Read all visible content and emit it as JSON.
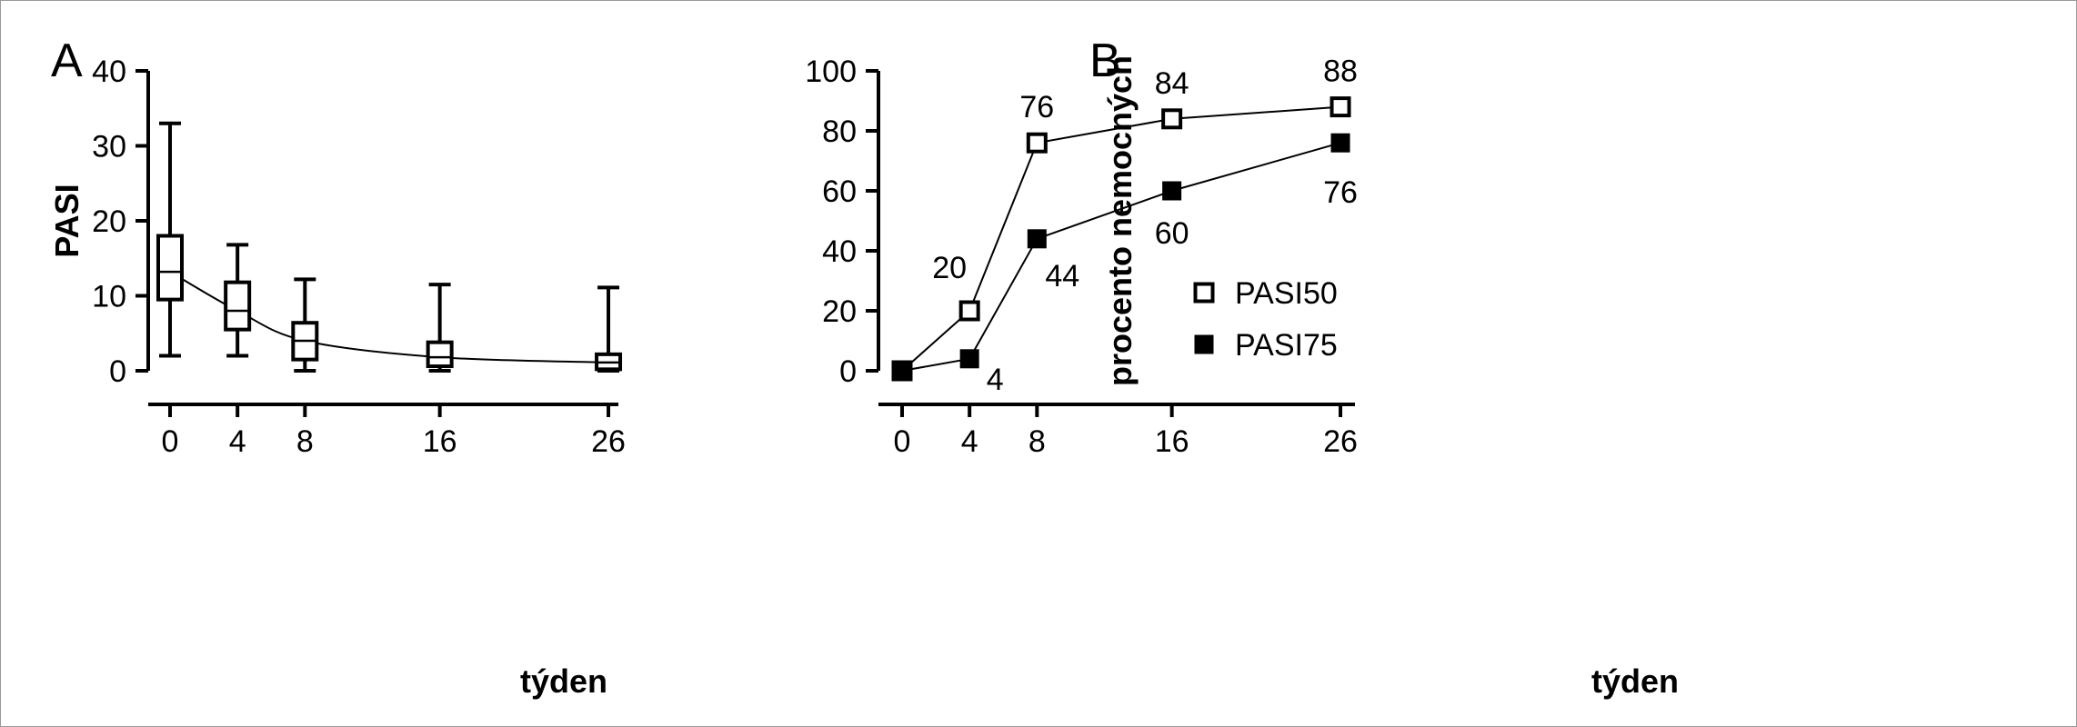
{
  "colors": {
    "axis": "#000000",
    "background": "#ffffff",
    "border": "#9a9a9a"
  },
  "chart_data": [
    {
      "panel": "A",
      "type": "box",
      "xlabel": "týden",
      "ylabel": "PASI",
      "ylim": [
        0,
        40
      ],
      "yticks": [
        0,
        10,
        20,
        30,
        40
      ],
      "categories": [
        "0",
        "4",
        "8",
        "16",
        "26"
      ],
      "x": [
        0,
        4,
        8,
        16,
        26
      ],
      "boxes": [
        {
          "x": 0,
          "min": 2.0,
          "q1": 9.5,
          "median": 13.2,
          "q3": 18.0,
          "max": 33.0
        },
        {
          "x": 4,
          "min": 2.0,
          "q1": 5.5,
          "median": 8.0,
          "q3": 11.8,
          "max": 16.8
        },
        {
          "x": 8,
          "min": 0.0,
          "q1": 1.5,
          "median": 4.0,
          "q3": 6.4,
          "max": 12.2
        },
        {
          "x": 16,
          "min": 0.0,
          "q1": 0.6,
          "median": 1.8,
          "q3": 3.8,
          "max": 11.5
        },
        {
          "x": 26,
          "min": 0.0,
          "q1": 0.2,
          "median": 1.1,
          "q3": 2.2,
          "max": 11.1
        }
      ],
      "grid": false
    },
    {
      "panel": "B",
      "type": "line",
      "xlabel": "týden",
      "ylabel": "procento nemocných",
      "ylim": [
        0,
        100
      ],
      "yticks": [
        0,
        20,
        40,
        60,
        80,
        100
      ],
      "x": [
        0,
        4,
        8,
        16,
        26
      ],
      "series": [
        {
          "name": "PASI50",
          "marker": "open-square",
          "values": [
            0,
            20,
            76,
            84,
            88
          ],
          "labels": [
            "",
            "20",
            "76",
            "84",
            "88"
          ]
        },
        {
          "name": "PASI75",
          "marker": "filled-square",
          "values": [
            0,
            4,
            44,
            60,
            76
          ],
          "labels": [
            "",
            "4",
            "44",
            "60",
            "76"
          ]
        }
      ],
      "legend_position": "right",
      "grid": false
    }
  ]
}
